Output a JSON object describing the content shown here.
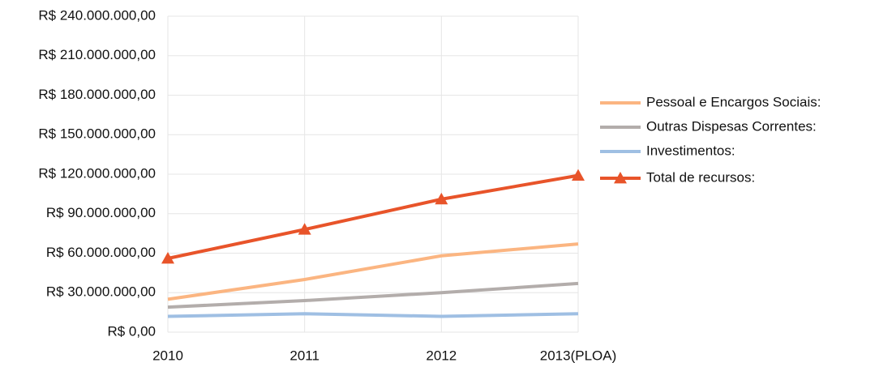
{
  "chart_data": {
    "type": "line",
    "categories": [
      "2010",
      "2011",
      "2012",
      "2013(PLOA)"
    ],
    "series": [
      {
        "name": "Pessoal e Encargos Sociais:",
        "color": "#fbb581",
        "values": [
          25000000,
          40000000,
          58000000,
          67000000
        ]
      },
      {
        "name": "Outras Dispesas Correntes:",
        "color": "#b3adab",
        "values": [
          19000000,
          24000000,
          30000000,
          37000000
        ]
      },
      {
        "name": "Investimentos:",
        "color": "#9fbfe3",
        "values": [
          12000000,
          14000000,
          12000000,
          14000000
        ]
      },
      {
        "name": "Total de recursos:",
        "color": "#e8542a",
        "marker": "triangle",
        "values": [
          56000000,
          78000000,
          101000000,
          119000000
        ]
      }
    ],
    "ylim": [
      0,
      240000000
    ],
    "yticks": [
      {
        "value": 0,
        "label": "R$ 0,00"
      },
      {
        "value": 30000000,
        "label": "R$ 30.000.000,00"
      },
      {
        "value": 60000000,
        "label": "R$ 60.000.000,00"
      },
      {
        "value": 90000000,
        "label": "R$ 90.000.000,00"
      },
      {
        "value": 120000000,
        "label": "R$ 120.000.000,00"
      },
      {
        "value": 150000000,
        "label": "R$ 150.000.000,00"
      },
      {
        "value": 180000000,
        "label": "R$ 180.000.000,00"
      },
      {
        "value": 210000000,
        "label": "R$ 210.000.000,00"
      },
      {
        "value": 240000000,
        "label": "R$ 240.000.000,00"
      }
    ],
    "grid": true,
    "legend": "right"
  }
}
